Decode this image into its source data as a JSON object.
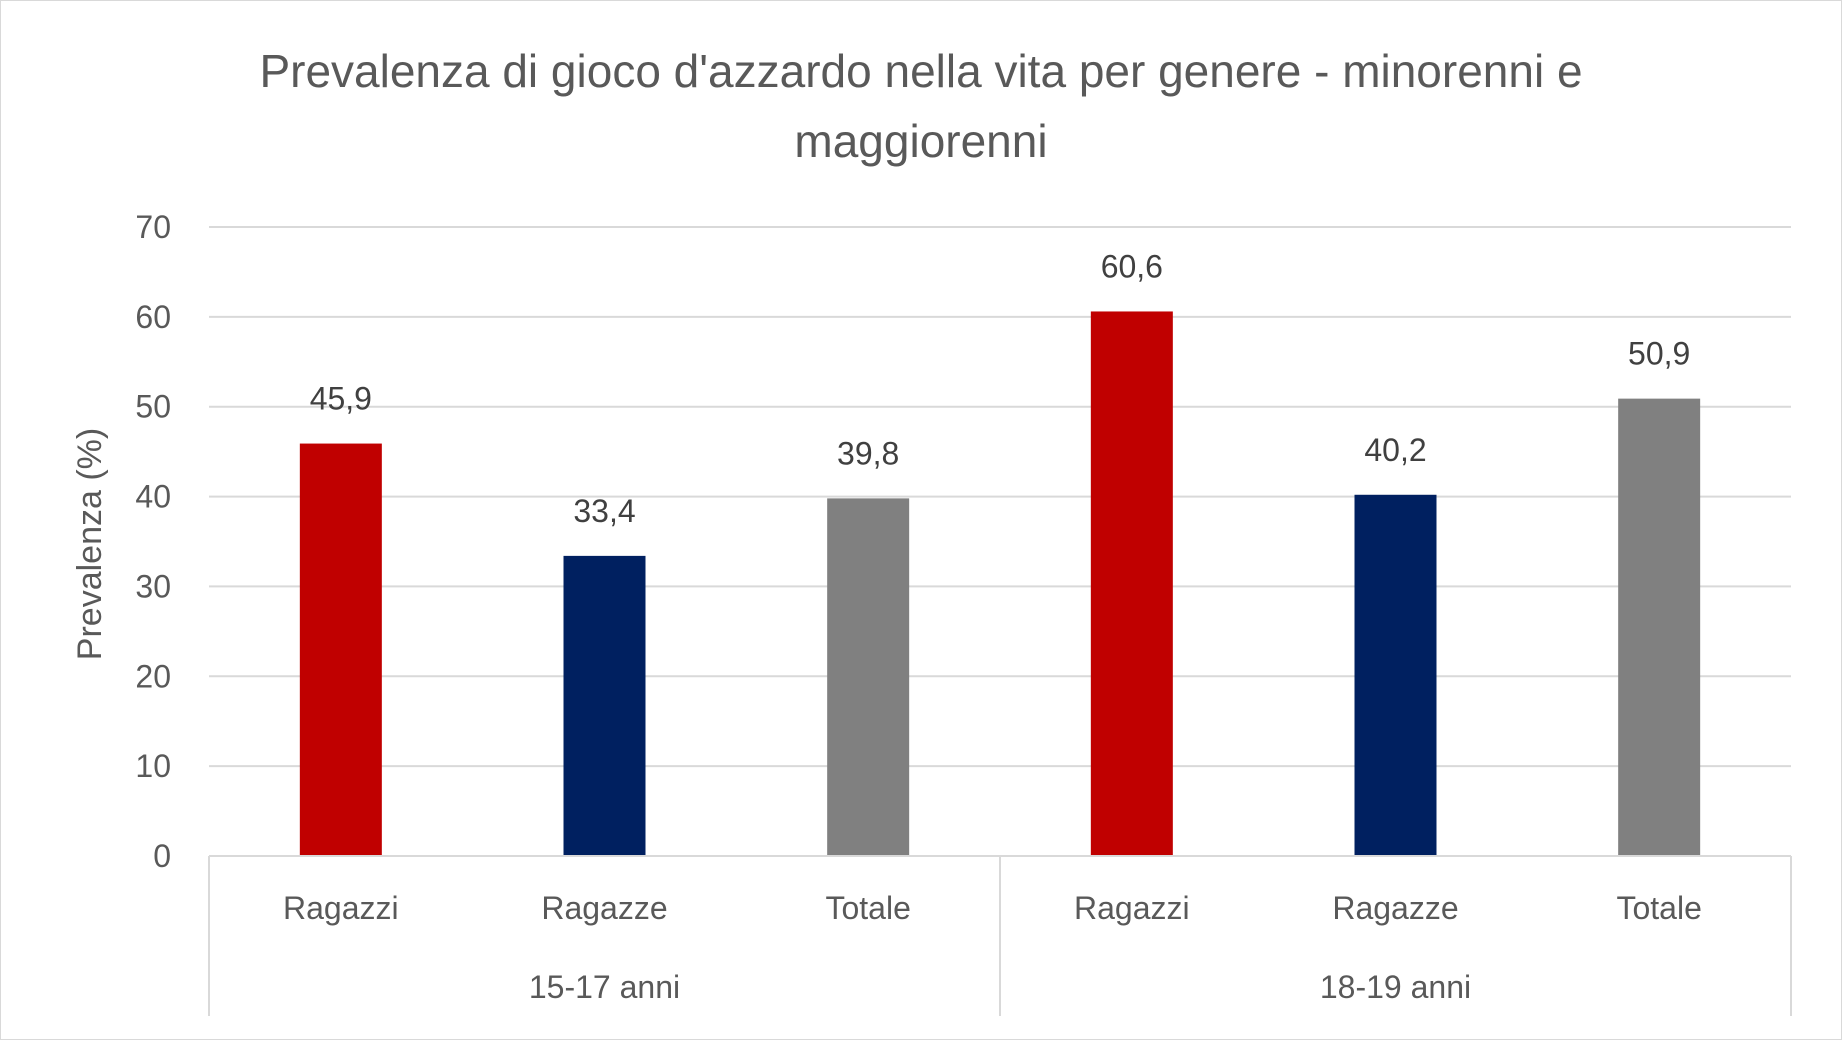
{
  "chart_data": {
    "type": "bar",
    "title_lines": [
      "Prevalenza di gioco d'azzardo nella vita per genere - minorenni e",
      "maggiorenni"
    ],
    "ylabel": "Prevalenza (%)",
    "xlabel": "",
    "ylim": [
      0,
      70
    ],
    "yticks": [
      0,
      10,
      20,
      30,
      40,
      50,
      60,
      70
    ],
    "grid": true,
    "legend": "none",
    "groups": [
      {
        "label": "15-17 anni",
        "categories": [
          "Ragazzi",
          "Ragazze",
          "Totale"
        ],
        "values": [
          45.9,
          33.4,
          39.8
        ],
        "value_labels": [
          "45,9",
          "33,4",
          "39,8"
        ]
      },
      {
        "label": "18-19 anni",
        "categories": [
          "Ragazzi",
          "Ragazze",
          "Totale"
        ],
        "values": [
          60.6,
          40.2,
          50.9
        ],
        "value_labels": [
          "60,6",
          "40,2",
          "50,9"
        ]
      }
    ],
    "category_colors": {
      "Ragazzi": "#c00000",
      "Ragazze": "#002060",
      "Totale": "#808080"
    }
  }
}
